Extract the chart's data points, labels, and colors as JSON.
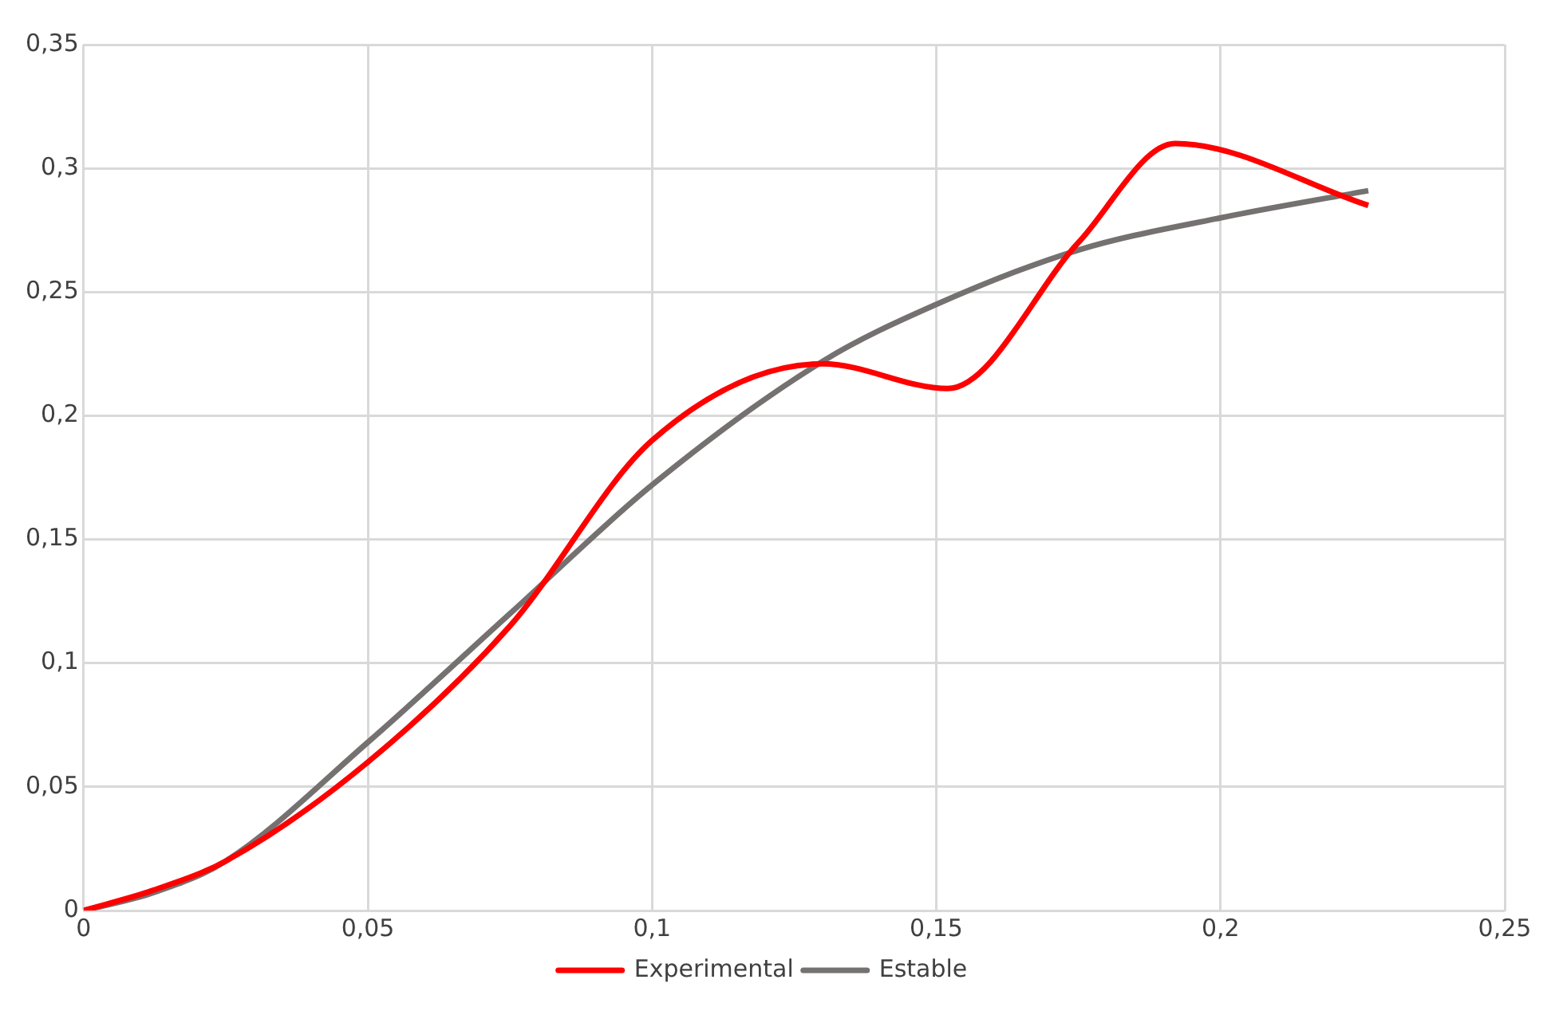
{
  "chart_data": {
    "type": "line",
    "xlim": [
      0,
      0.25
    ],
    "xticks": [
      {
        "value": 0,
        "label": "0"
      },
      {
        "value": 0.05,
        "label": "0,05"
      },
      {
        "value": 0.1,
        "label": "0,1"
      },
      {
        "value": 0.15,
        "label": "0,15"
      },
      {
        "value": 0.2,
        "label": "0,2"
      },
      {
        "value": 0.25,
        "label": "0,25"
      }
    ],
    "ylim": [
      0,
      0.35
    ],
    "yticks": [
      {
        "value": 0,
        "label": "0"
      },
      {
        "value": 0.05,
        "label": "0,05"
      },
      {
        "value": 0.1,
        "label": "0,1"
      },
      {
        "value": 0.15,
        "label": "0,15"
      },
      {
        "value": 0.2,
        "label": "0,2"
      },
      {
        "value": 0.25,
        "label": "0,25"
      },
      {
        "value": 0.3,
        "label": "0,3"
      },
      {
        "value": 0.35,
        "label": "0,35"
      }
    ],
    "grid": true,
    "legend": "bottom",
    "marker": "none",
    "line_style": "solid",
    "series": [
      {
        "name": "Experimental",
        "color": "#ff0000",
        "x": [
          0,
          0.012,
          0.025,
          0.05,
          0.075,
          0.1,
          0.13,
          0.152,
          0.175,
          0.192,
          0.226
        ],
        "values": [
          0,
          0.008,
          0.02,
          0.06,
          0.115,
          0.19,
          0.221,
          0.211,
          0.27,
          0.31,
          0.285
        ]
      },
      {
        "name": "Estable",
        "color": "#767171",
        "x": [
          0,
          0.012,
          0.025,
          0.05,
          0.075,
          0.1,
          0.13,
          0.15,
          0.175,
          0.2,
          0.226
        ],
        "values": [
          0,
          0.007,
          0.02,
          0.068,
          0.12,
          0.172,
          0.222,
          0.245,
          0.267,
          0.28,
          0.291
        ]
      }
    ]
  }
}
